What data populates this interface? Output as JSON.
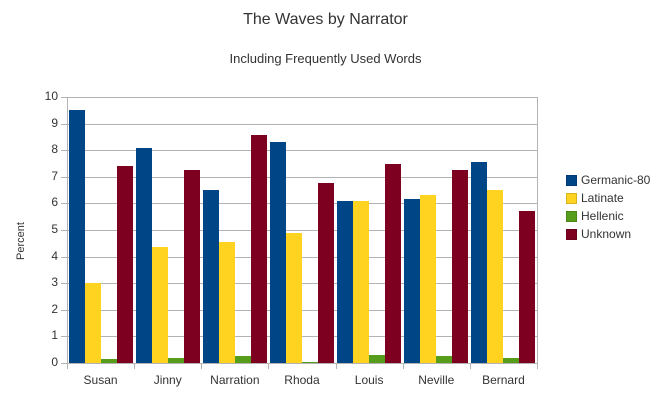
{
  "chart_data": {
    "type": "bar",
    "title": "The Waves by Narrator",
    "subtitle": "Including Frequently Used Words",
    "xlabel": "",
    "ylabel": "Percent",
    "ylim": [
      0,
      10
    ],
    "yticks": [
      0,
      1,
      2,
      3,
      4,
      5,
      6,
      7,
      8,
      9,
      10
    ],
    "grid": true,
    "legend_position": "right",
    "categories": [
      "Susan",
      "Jinny",
      "Narration",
      "Rhoda",
      "Louis",
      "Neville",
      "Bernard"
    ],
    "series": [
      {
        "name": "Germanic-80",
        "color": "#004586",
        "values": [
          9.5,
          8.08,
          6.5,
          8.3,
          6.1,
          6.17,
          7.55
        ]
      },
      {
        "name": "Latinate",
        "color": "#ffd320",
        "values": [
          3.0,
          4.36,
          4.55,
          4.9,
          6.1,
          6.32,
          6.5
        ]
      },
      {
        "name": "Hellenic",
        "color": "#579d1c",
        "values": [
          0.15,
          0.2,
          0.28,
          0.05,
          0.3,
          0.25,
          0.2
        ]
      },
      {
        "name": "Unknown",
        "color": "#7e0021",
        "values": [
          7.4,
          7.26,
          8.57,
          6.77,
          7.5,
          7.27,
          5.72
        ]
      }
    ]
  }
}
